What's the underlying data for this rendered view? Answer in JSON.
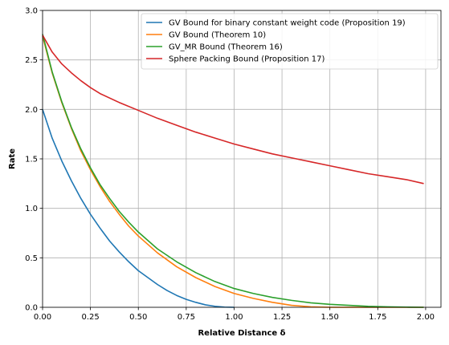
{
  "chart_data": {
    "type": "line",
    "xlabel": "Relative Distance δ",
    "ylabel": "Rate",
    "xlim": [
      0,
      2.08
    ],
    "ylim": [
      0,
      3.0
    ],
    "xticks": [
      "0.00",
      "0.25",
      "0.50",
      "0.75",
      "1.00",
      "1.25",
      "1.50",
      "1.75",
      "2.00"
    ],
    "yticks": [
      "0.0",
      "0.5",
      "1.0",
      "1.5",
      "2.0",
      "2.5",
      "3.0"
    ],
    "grid": true,
    "legend_position": "top-right",
    "series": [
      {
        "name": "GV Bound for binary constant weight code (Proposition 19)",
        "color": "#1f77b4",
        "x": [
          0.0,
          0.05,
          0.1,
          0.15,
          0.2,
          0.25,
          0.3,
          0.35,
          0.4,
          0.45,
          0.5,
          0.55,
          0.6,
          0.65,
          0.7,
          0.75,
          0.8,
          0.85,
          0.9,
          0.95,
          1.0
        ],
        "y": [
          2.0,
          1.71,
          1.48,
          1.28,
          1.1,
          0.94,
          0.8,
          0.67,
          0.56,
          0.46,
          0.37,
          0.3,
          0.23,
          0.17,
          0.12,
          0.08,
          0.05,
          0.025,
          0.01,
          0.002,
          0.0
        ]
      },
      {
        "name": "GV Bound (Theorem 10)",
        "color": "#ff7f0e",
        "x": [
          0.0,
          0.05,
          0.1,
          0.15,
          0.2,
          0.25,
          0.3,
          0.35,
          0.4,
          0.45,
          0.5,
          0.6,
          0.7,
          0.8,
          0.9,
          1.0,
          1.1,
          1.2,
          1.3,
          1.4,
          1.5,
          1.6,
          1.7,
          1.8,
          1.9,
          1.99
        ],
        "y": [
          2.74,
          2.37,
          2.07,
          1.81,
          1.58,
          1.39,
          1.22,
          1.07,
          0.94,
          0.82,
          0.72,
          0.55,
          0.41,
          0.3,
          0.21,
          0.14,
          0.09,
          0.05,
          0.02,
          0.005,
          0.0,
          0.0,
          0.0,
          0.0,
          0.0,
          0.0
        ]
      },
      {
        "name": "GV_MR Bound (Theorem 16)",
        "color": "#2ca02c",
        "x": [
          0.0,
          0.05,
          0.1,
          0.15,
          0.2,
          0.25,
          0.3,
          0.35,
          0.4,
          0.45,
          0.5,
          0.6,
          0.7,
          0.8,
          0.9,
          1.0,
          1.1,
          1.2,
          1.3,
          1.4,
          1.5,
          1.6,
          1.7,
          1.8,
          1.9,
          1.99
        ],
        "y": [
          2.76,
          2.38,
          2.08,
          1.82,
          1.6,
          1.41,
          1.24,
          1.1,
          0.97,
          0.86,
          0.76,
          0.59,
          0.46,
          0.35,
          0.26,
          0.19,
          0.14,
          0.1,
          0.07,
          0.045,
          0.03,
          0.02,
          0.01,
          0.005,
          0.002,
          0.0
        ]
      },
      {
        "name": "Sphere Packing Bound (Proposition 17)",
        "color": "#d62728",
        "x": [
          0.0,
          0.05,
          0.1,
          0.15,
          0.2,
          0.25,
          0.3,
          0.4,
          0.5,
          0.6,
          0.7,
          0.8,
          0.9,
          1.0,
          1.1,
          1.2,
          1.3,
          1.4,
          1.5,
          1.6,
          1.7,
          1.8,
          1.9,
          1.99
        ],
        "y": [
          2.75,
          2.58,
          2.46,
          2.37,
          2.29,
          2.22,
          2.16,
          2.07,
          1.99,
          1.91,
          1.84,
          1.77,
          1.71,
          1.65,
          1.6,
          1.55,
          1.51,
          1.47,
          1.43,
          1.39,
          1.35,
          1.32,
          1.29,
          1.25
        ]
      }
    ]
  }
}
